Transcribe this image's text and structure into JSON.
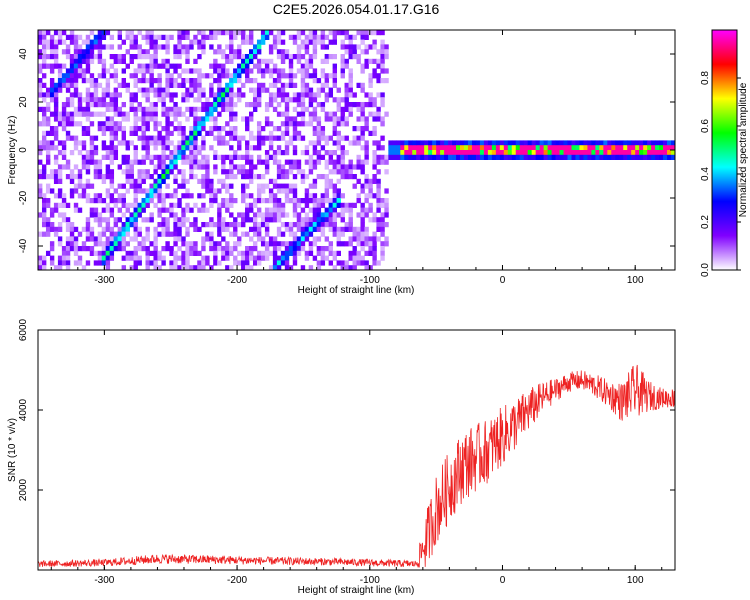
{
  "figure": {
    "title": "C2E5.2026.054.01.17.G16"
  },
  "chart_data": [
    {
      "type": "heatmap",
      "title": "",
      "xlabel": "Height of straight line (km)",
      "ylabel": "Frequency (Hz)",
      "xlim": [
        -350,
        130
      ],
      "ylim": [
        -50,
        50
      ],
      "xticks": [
        -300,
        -200,
        -100,
        0,
        100
      ],
      "yticks": [
        -40,
        -20,
        0,
        20,
        40
      ],
      "colorbar": {
        "label": "Normalized spectral amplitude",
        "range": [
          0,
          1
        ],
        "ticks": [
          0.0,
          0.2,
          0.4,
          0.6,
          0.8
        ],
        "tick_labels": [
          "0.0",
          "0.2",
          "0.4",
          "0.6",
          "0.8"
        ],
        "colormap": "rainbow",
        "colors": [
          "#ffffff",
          "#8000ff",
          "#0000ff",
          "#00ffff",
          "#00ff00",
          "#ffff00",
          "#ff0000",
          "#ff00ff"
        ]
      },
      "features": [
        {
          "kind": "noise-floor",
          "x_range": [
            -350,
            -85
          ],
          "y_range": [
            -50,
            50
          ],
          "level": 0.15
        },
        {
          "kind": "chirp-line",
          "from": [
            -300,
            -45
          ],
          "to": [
            -178,
            48
          ],
          "level": 0.45
        },
        {
          "kind": "chirp-line",
          "from": [
            -338,
            25
          ],
          "to": [
            -300,
            50
          ],
          "level": 0.3
        },
        {
          "kind": "chirp-line",
          "from": [
            -170,
            -48
          ],
          "to": [
            -125,
            -22
          ],
          "level": 0.35
        },
        {
          "kind": "carrier",
          "x_range": [
            -85,
            130
          ],
          "frequency": 0,
          "level": 0.95
        }
      ]
    },
    {
      "type": "line",
      "title": "",
      "xlabel": "Height of straight line (km)",
      "ylabel": "SNR (10 * v/v)",
      "xlim": [
        -350,
        130
      ],
      "ylim": [
        0,
        6000
      ],
      "xticks": [
        -300,
        -200,
        -100,
        0,
        100
      ],
      "yticks": [
        2000,
        4000,
        6000
      ],
      "grid": false,
      "series": [
        {
          "color": "#ee2222",
          "x": [
            -350,
            -300,
            -260,
            -220,
            -180,
            -120,
            -65,
            -58,
            -50,
            -40,
            -30,
            -20,
            -10,
            0,
            10,
            20,
            30,
            40,
            50,
            60,
            70,
            80,
            90,
            100,
            110,
            120,
            130
          ],
          "y": [
            150,
            180,
            280,
            260,
            230,
            200,
            150,
            700,
            1500,
            2100,
            2600,
            2800,
            3000,
            3350,
            3650,
            4000,
            4300,
            4500,
            4700,
            4750,
            4600,
            4400,
            4200,
            4500,
            4350,
            4300,
            4300
          ],
          "noise_amplitude": [
            80,
            90,
            120,
            110,
            100,
            90,
            90,
            700,
            900,
            900,
            900,
            850,
            800,
            750,
            650,
            550,
            400,
            300,
            250,
            250,
            300,
            350,
            500,
            700,
            400,
            250,
            250
          ]
        }
      ]
    }
  ]
}
